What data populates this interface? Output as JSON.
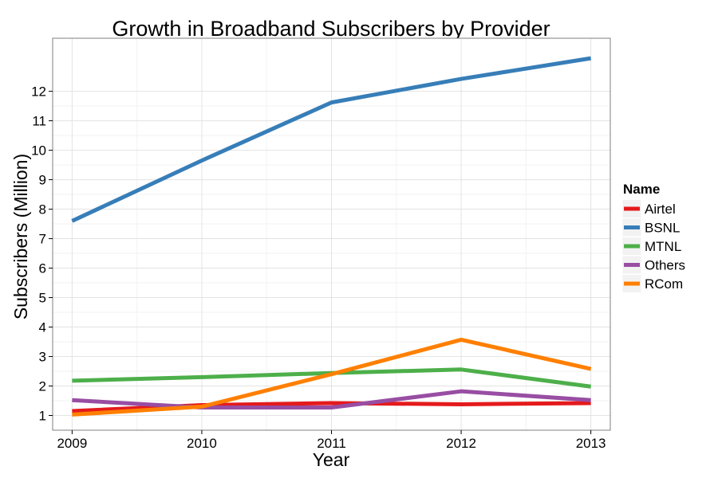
{
  "chart_data": {
    "type": "line",
    "title": "Growth in Broadband Subscribers by Provider",
    "xlabel": "Year",
    "ylabel": "Subscribers (Million)",
    "x": [
      2009,
      2010,
      2011,
      2012,
      2013
    ],
    "x_ticks": [
      "2009",
      "2010",
      "2011",
      "2012",
      "2013"
    ],
    "y_ticks": [
      "1",
      "2",
      "3",
      "4",
      "5",
      "6",
      "7",
      "8",
      "9",
      "10",
      "11",
      "12"
    ],
    "xlim": [
      2008.85,
      2013.15
    ],
    "ylim": [
      0.5,
      13.8
    ],
    "grid": true,
    "legend": {
      "title": "Name",
      "position": "right"
    },
    "series": [
      {
        "name": "Airtel",
        "color": "#E41A1C",
        "values": [
          1.15,
          1.35,
          1.42,
          1.38,
          1.42
        ]
      },
      {
        "name": "BSNL",
        "color": "#377EB8",
        "values": [
          7.6,
          9.65,
          11.62,
          12.42,
          13.12
        ]
      },
      {
        "name": "MTNL",
        "color": "#4DAF4A",
        "values": [
          2.18,
          2.3,
          2.44,
          2.56,
          1.98
        ]
      },
      {
        "name": "Others",
        "color": "#984EA3",
        "values": [
          1.52,
          1.27,
          1.27,
          1.82,
          1.52
        ]
      },
      {
        "name": "RCom",
        "color": "#FF7F00",
        "values": [
          1.03,
          1.3,
          2.4,
          3.57,
          2.58
        ]
      }
    ]
  }
}
